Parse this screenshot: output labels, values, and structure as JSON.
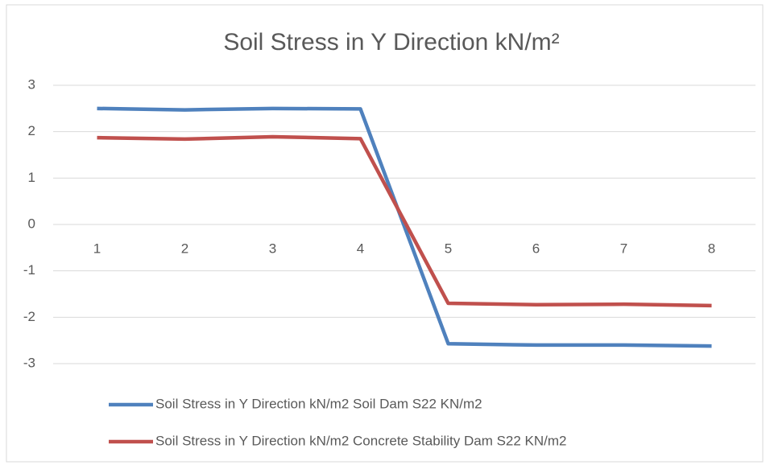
{
  "chart_data": {
    "type": "line",
    "title": "Soil Stress in Y Direction kN/m²",
    "categories": [
      "1",
      "2",
      "3",
      "4",
      "5",
      "6",
      "7",
      "8"
    ],
    "series": [
      {
        "name": "Soil Stress in Y Direction kN/m2 Soil Dam S22 KN/m2",
        "color": "#4f81bd",
        "values": [
          2.5,
          2.47,
          2.5,
          2.49,
          -2.57,
          -2.6,
          -2.6,
          -2.62
        ]
      },
      {
        "name": "Soil Stress in Y Direction kN/m2 Concrete Stability Dam S22 KN/m2",
        "color": "#c0504d",
        "values": [
          1.87,
          1.84,
          1.89,
          1.85,
          -1.7,
          -1.73,
          -1.72,
          -1.75
        ]
      }
    ],
    "ylim": [
      -3,
      3
    ],
    "yticks": [
      -3,
      -2,
      -1,
      0,
      1,
      2,
      3
    ],
    "grid": true,
    "legend": "bottom"
  }
}
